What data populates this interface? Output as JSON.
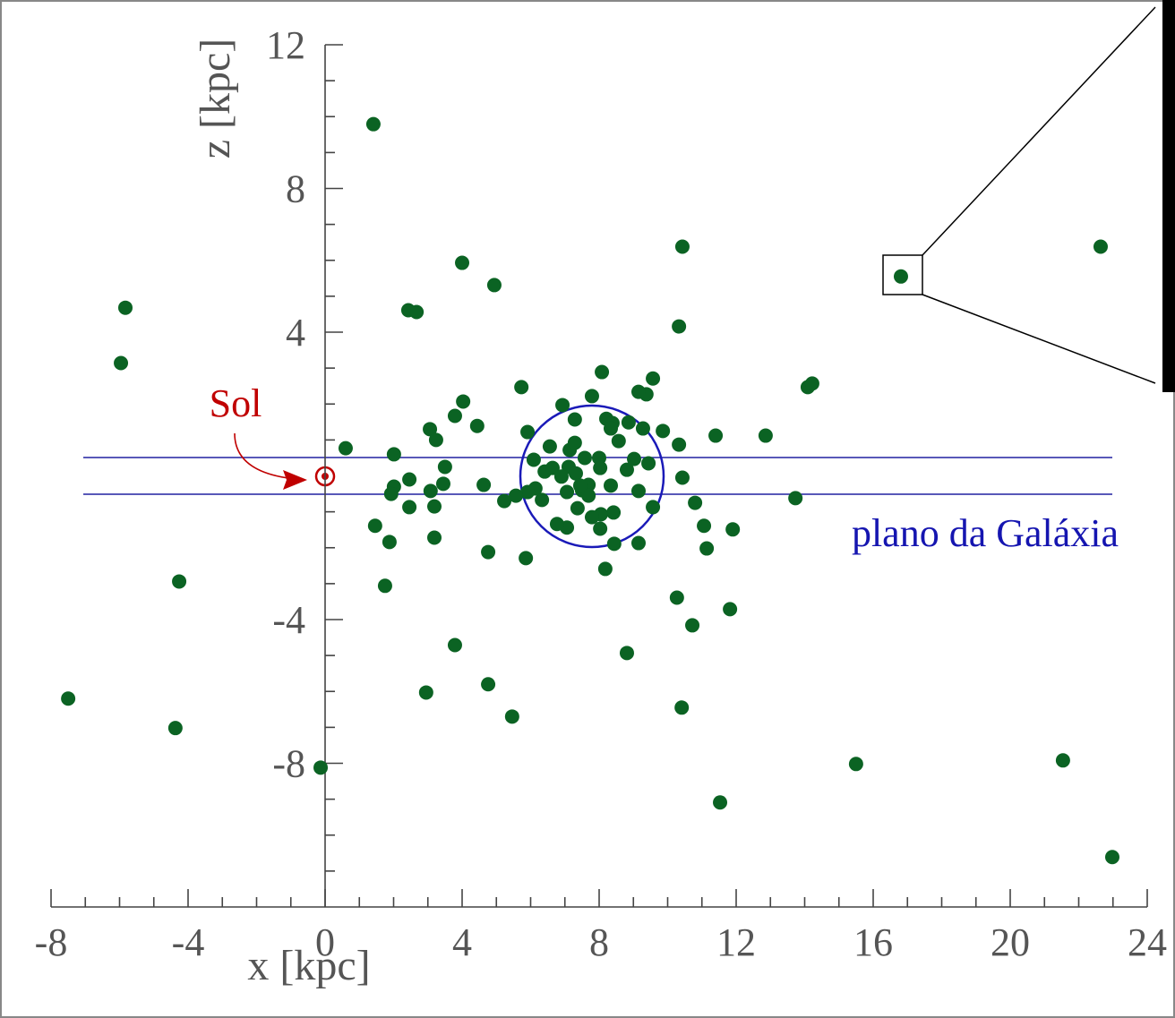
{
  "chart_data": {
    "type": "scatter",
    "x_label": "x [kpc]",
    "y_label": "z [kpc]",
    "annotations": {
      "sun": "Sol",
      "plane": "plano da Galáxia"
    },
    "xlim": [
      -8,
      24
    ],
    "ylim": [
      -12,
      12
    ],
    "xticks": [
      -8,
      -4,
      0,
      4,
      8,
      12,
      16,
      20,
      24
    ],
    "yticks": [
      -8,
      -4,
      4,
      8,
      12
    ],
    "xminorticks": [
      -7,
      -6,
      -5,
      -3,
      -2,
      -1,
      1,
      2,
      3,
      5,
      6,
      7,
      9,
      10,
      11,
      13,
      14,
      15,
      17,
      18,
      19,
      21,
      22,
      23
    ],
    "yminorticks": [
      -11,
      -10,
      -9,
      -7,
      -6,
      -5,
      -3,
      -2,
      -1,
      1,
      2,
      3,
      5,
      6,
      7,
      9,
      10,
      11
    ],
    "color": "#0b6323",
    "x": [
      1.41,
      -5.83,
      -5.96,
      4.0,
      4.94,
      2.43,
      2.67,
      10.43,
      10.33,
      16.81,
      22.64,
      14.09,
      14.22,
      12.86,
      11.4,
      0.6,
      2.01,
      3.06,
      3.24,
      3.79,
      4.03,
      4.44,
      5.73,
      3.5,
      3.45,
      3.08,
      3.19,
      2.46,
      2.01,
      1.93,
      2.46,
      4.63,
      5.23,
      1.46,
      1.88,
      3.19,
      4.76,
      5.86,
      1.75,
      -4.26,
      3.79,
      2.95,
      4.76,
      5.46,
      -7.5,
      -4.37,
      -0.13,
      8.81,
      10.27,
      10.72,
      11.82,
      10.41,
      11.53,
      15.5,
      21.54,
      22.98,
      13.73,
      11.9,
      11.14,
      11.06,
      10.8,
      10.43,
      10.33,
      9.86,
      9.57,
      9.38,
      9.15,
      8.08,
      7.79,
      6.93,
      8.18,
      8.44,
      9.15,
      9.57,
      9.15,
      9.44,
      9.02,
      8.81,
      8.34,
      8.42,
      8.05,
      7.79,
      8.03,
      7.37,
      7.06,
      6.77,
      6.33,
      6.14,
      5.91,
      5.57,
      6.09,
      6.41,
      6.64,
      6.56,
      5.91,
      7.14,
      7.29,
      7.29,
      8.21,
      8.39,
      8.57,
      8.86,
      9.28,
      8.0,
      8.03,
      7.58,
      7.11,
      7.32,
      6.9,
      7.06,
      7.5,
      7.69,
      7.69,
      7.45,
      8.34
    ],
    "values": [
      9.79,
      4.68,
      3.14,
      5.93,
      5.31,
      4.61,
      4.56,
      6.38,
      4.16,
      5.55,
      6.38,
      2.47,
      2.57,
      1.12,
      1.12,
      0.77,
      0.6,
      1.3,
      1.0,
      1.67,
      2.07,
      1.39,
      2.47,
      0.25,
      -0.22,
      -0.42,
      -0.85,
      -0.1,
      -0.3,
      -0.5,
      -0.87,
      -0.25,
      -0.7,
      -1.39,
      -1.84,
      -1.72,
      -2.12,
      -2.29,
      -3.06,
      -2.94,
      -4.71,
      -6.03,
      -5.8,
      -6.7,
      -6.2,
      -7.02,
      -8.12,
      -4.93,
      -3.39,
      -4.16,
      -3.71,
      -6.45,
      -9.09,
      -8.02,
      -7.92,
      -10.61,
      -0.62,
      -1.49,
      -2.02,
      -1.39,
      -0.75,
      -0.05,
      0.87,
      1.25,
      2.71,
      2.27,
      2.34,
      2.89,
      2.22,
      1.97,
      -2.59,
      -1.89,
      -1.87,
      -0.87,
      -0.42,
      0.35,
      0.47,
      0.17,
      -0.27,
      -1.02,
      -1.07,
      -1.15,
      -1.47,
      -0.9,
      -1.44,
      -1.34,
      -0.67,
      -0.35,
      -0.45,
      -0.55,
      0.45,
      0.12,
      0.22,
      0.82,
      1.22,
      0.72,
      0.92,
      1.57,
      1.59,
      1.47,
      0.97,
      1.49,
      1.32,
      0.5,
      0.22,
      0.5,
      0.25,
      0.07,
      -0.02,
      -0.45,
      -0.4,
      -0.25,
      -0.55,
      -0.27,
      1.32
    ]
  }
}
